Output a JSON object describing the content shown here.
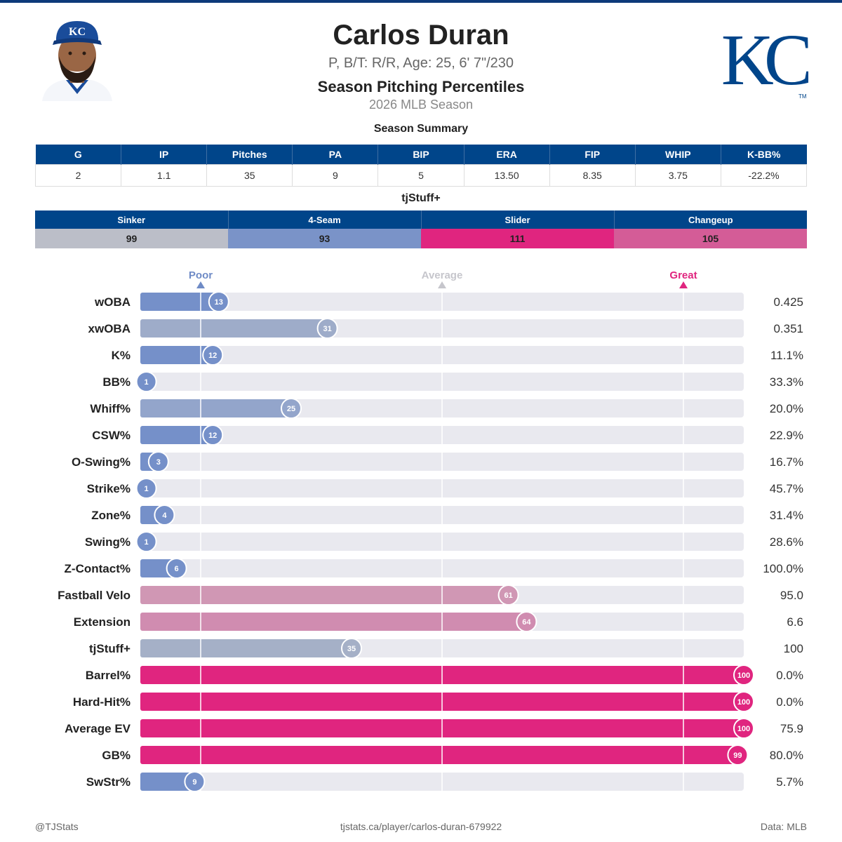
{
  "header": {
    "name": "Carlos Duran",
    "bio": "P, B/T: R/R, Age: 25, 6' 7\"/230",
    "subtitle": "Season Pitching Percentiles",
    "season": "2026 MLB Season",
    "logo_text": "KC",
    "cap_text": "KC",
    "trademark": "TM"
  },
  "colors": {
    "brand_blue": "#00458a",
    "poor": "#7590c9",
    "great": "#e0257f",
    "average": "#b8bcc6",
    "track": "#e9e9ef"
  },
  "summary": {
    "title": "Season Summary",
    "headers": [
      "G",
      "IP",
      "Pitches",
      "PA",
      "BIP",
      "ERA",
      "FIP",
      "WHIP",
      "K-BB%"
    ],
    "values": [
      "2",
      "1.1",
      "35",
      "9",
      "5",
      "13.50",
      "8.35",
      "3.75",
      "-22.2%"
    ]
  },
  "tjstuff": {
    "title": "tjStuff+",
    "pitches": [
      {
        "name": "Sinker",
        "value": "99",
        "color": "#bbbec8"
      },
      {
        "name": "4-Seam",
        "value": "93",
        "color": "#7a93c8"
      },
      {
        "name": "Slider",
        "value": "111",
        "color": "#e0257f"
      },
      {
        "name": "Changeup",
        "value": "105",
        "color": "#d45c97"
      }
    ]
  },
  "chart_data": {
    "type": "bar",
    "orientation": "horizontal",
    "xlim": [
      0,
      100
    ],
    "reference_markers": [
      {
        "label": "Poor",
        "value": 10,
        "color": "#6f8bc6"
      },
      {
        "label": "Average",
        "value": 50,
        "color": "#c6c6cc"
      },
      {
        "label": "Great",
        "value": 90,
        "color": "#e0257f"
      }
    ],
    "categories": [
      "wOBA",
      "xwOBA",
      "K%",
      "BB%",
      "Whiff%",
      "CSW%",
      "O-Swing%",
      "Strike%",
      "Zone%",
      "Swing%",
      "Z-Contact%",
      "Fastball Velo",
      "Extension",
      "tjStuff+",
      "Barrel%",
      "Hard-Hit%",
      "Average EV",
      "GB%",
      "SwStr%"
    ],
    "percentiles": [
      13,
      31,
      12,
      1,
      25,
      12,
      3,
      1,
      4,
      1,
      6,
      61,
      64,
      35,
      100,
      100,
      100,
      99,
      9
    ],
    "stat_values": [
      "0.425",
      "0.351",
      "11.1%",
      "33.3%",
      "20.0%",
      "22.9%",
      "16.7%",
      "45.7%",
      "31.4%",
      "28.6%",
      "100.0%",
      "95.0",
      "6.6",
      "100",
      "0.0%",
      "0.0%",
      "75.9",
      "80.0%",
      "5.7%"
    ],
    "colors": [
      "#7590c9",
      "#9eacc9",
      "#7590c9",
      "#7590c9",
      "#93a5cb",
      "#7590c9",
      "#7590c9",
      "#7590c9",
      "#7590c9",
      "#7590c9",
      "#7590c9",
      "#d097b4",
      "#d08cb0",
      "#a5b0c7",
      "#e0257f",
      "#e0257f",
      "#e0257f",
      "#e0257f",
      "#7590c9"
    ]
  },
  "footer": {
    "left": "@TJStats",
    "center": "tjstats.ca/player/carlos-duran-679922",
    "right": "Data: MLB"
  }
}
